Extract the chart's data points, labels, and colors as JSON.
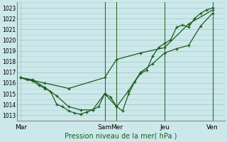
{
  "bg_color": "#cce8ea",
  "grid_color": "#aacfd2",
  "line_color": "#1a5c1a",
  "xlabel": "Pression niveau de la mer( hPa )",
  "ylim": [
    1012.5,
    1023.5
  ],
  "yticks": [
    1013,
    1014,
    1015,
    1016,
    1017,
    1018,
    1019,
    1020,
    1021,
    1022,
    1023
  ],
  "xtick_labels": [
    "Mar",
    "Sam",
    "Mer",
    "Jeu",
    "Ven"
  ],
  "xtick_positions": [
    0,
    7,
    8,
    12,
    16
  ],
  "xlim": [
    -0.3,
    17
  ],
  "vlines": [
    7,
    8,
    12,
    16
  ],
  "line1_x": [
    0,
    0.5,
    1,
    1.5,
    2,
    2.5,
    3,
    3.5,
    4,
    4.5,
    5,
    5.5,
    6,
    6.5,
    7,
    7.5,
    8,
    8.5,
    9,
    9.5,
    10,
    10.5,
    11,
    11.5,
    12,
    12.5,
    13,
    13.5,
    14,
    14.5,
    15,
    15.5,
    16
  ],
  "line1_y": [
    1016.5,
    1016.3,
    1016.2,
    1015.8,
    1015.5,
    1015.2,
    1014.0,
    1013.8,
    1013.4,
    1013.2,
    1013.1,
    1013.3,
    1013.5,
    1013.8,
    1015.0,
    1014.7,
    1013.8,
    1013.4,
    1015.0,
    1016.1,
    1016.9,
    1017.2,
    1018.5,
    1019.3,
    1019.7,
    1020.0,
    1021.2,
    1021.4,
    1021.2,
    1022.0,
    1022.5,
    1022.8,
    1023.0
  ],
  "line2_x": [
    0,
    1,
    2,
    3,
    4,
    5,
    6,
    7,
    8,
    9,
    10,
    11,
    12,
    13,
    14,
    15,
    16
  ],
  "line2_y": [
    1016.5,
    1016.3,
    1015.6,
    1014.8,
    1013.8,
    1013.5,
    1013.5,
    1015.0,
    1013.8,
    1015.3,
    1017.0,
    1017.8,
    1018.8,
    1019.2,
    1019.5,
    1021.3,
    1022.5
  ],
  "line3_x": [
    0,
    2,
    4,
    7,
    8,
    10,
    12,
    14,
    16
  ],
  "line3_y": [
    1016.5,
    1016.0,
    1015.5,
    1016.5,
    1018.2,
    1018.8,
    1019.3,
    1021.5,
    1022.8
  ]
}
